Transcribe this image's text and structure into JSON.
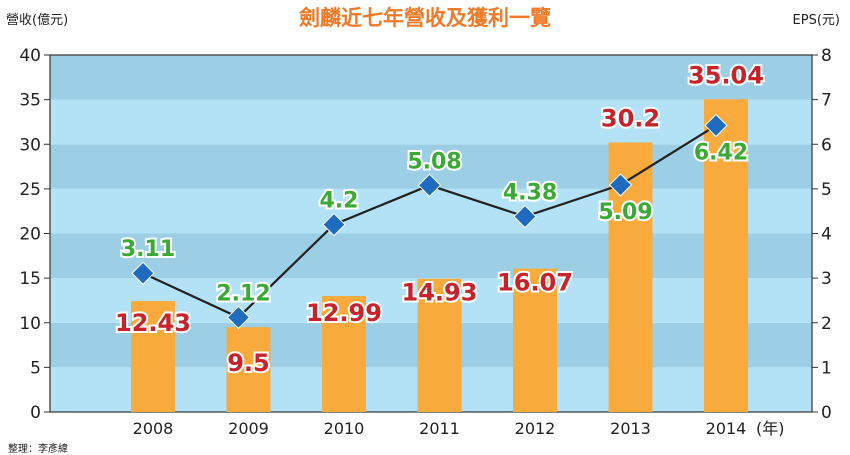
{
  "chart_data": {
    "type": "bar",
    "title": "劍麟近七年營收及獲利一覽",
    "categories": [
      "2008",
      "2009",
      "2010",
      "2011",
      "2012",
      "2013",
      "2014"
    ],
    "x_unit": "(年)",
    "y_left": {
      "label": "營收(億元)",
      "ylim": [
        0,
        40
      ],
      "ticks": [
        0,
        5,
        10,
        15,
        20,
        25,
        30,
        35,
        40
      ]
    },
    "y_right": {
      "label": "EPS(元)",
      "ylim": [
        0,
        8
      ],
      "ticks": [
        0,
        1,
        2,
        3,
        4,
        5,
        6,
        7,
        8
      ]
    },
    "series": [
      {
        "name": "營收",
        "type": "bar",
        "axis": "left",
        "color": "#f8ab3c",
        "values": [
          12.43,
          9.5,
          12.99,
          14.93,
          16.07,
          30.2,
          35.04
        ],
        "labels": [
          "12.43",
          "9.5",
          "12.99",
          "14.93",
          "16.07",
          "30.2",
          "35.04"
        ],
        "label_color": "#c8232c"
      },
      {
        "name": "EPS",
        "type": "line",
        "axis": "right",
        "color": "#1f6bbf",
        "values": [
          3.11,
          2.12,
          4.2,
          5.08,
          4.38,
          5.09,
          6.42
        ],
        "labels": [
          "3.11",
          "2.12",
          "4.2",
          "5.08",
          "4.38",
          "5.09",
          "6.42"
        ],
        "label_color": "#3aaa35"
      }
    ],
    "background_bands": [
      "#9ccfe6",
      "#b3e2f7"
    ],
    "grid": true,
    "source": "整理：李彥緯"
  }
}
